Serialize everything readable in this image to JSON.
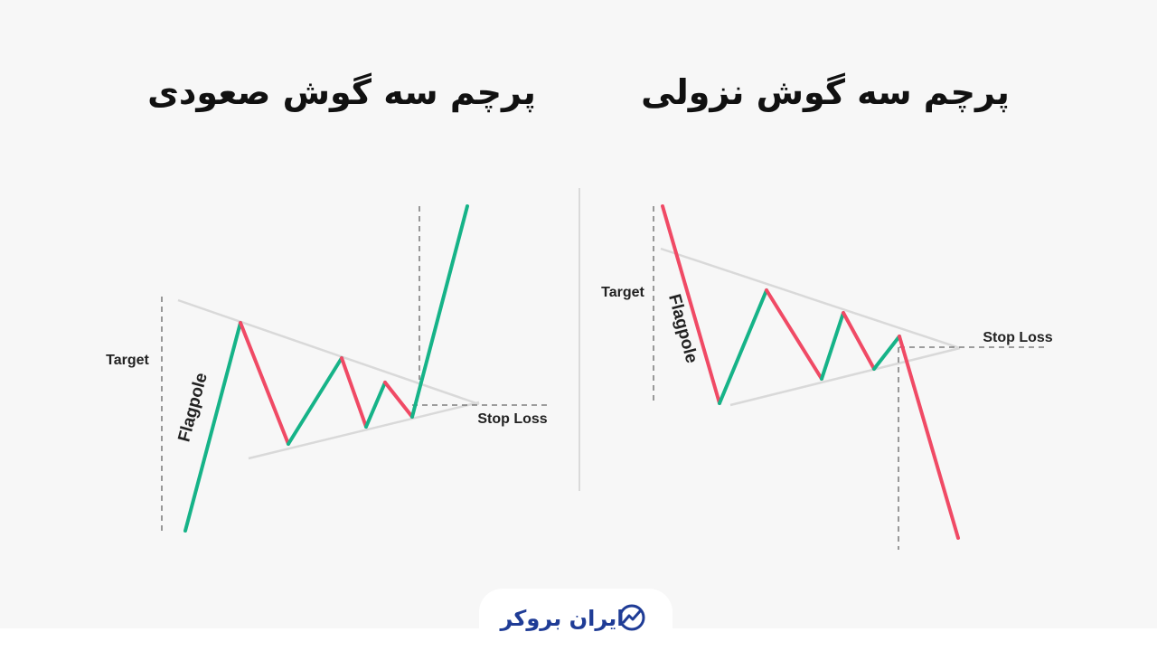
{
  "panels": [
    {
      "title": "پرچم سه گوش صعودی",
      "target_label": "Target",
      "flagpole_label": "Flagpole",
      "stop_loss_label": "Stop Loss"
    },
    {
      "title": "پرچم سه گوش نزولی",
      "target_label": "Target",
      "flagpole_label": "Flagpole",
      "stop_loss_label": "Stop Loss"
    }
  ],
  "logo": {
    "text": "ایران بروکر"
  }
}
